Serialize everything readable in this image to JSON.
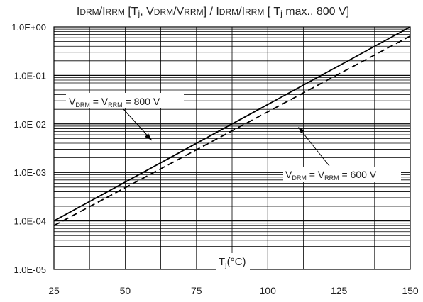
{
  "chart_data": {
    "type": "line",
    "title": {
      "i_drm": "DRM",
      "i_rrm": "RRM",
      "mid": " [T",
      "j": "j",
      "v_sep": ", V",
      "v_drm": "DRM",
      "v_rrm": "RRM",
      "close": "] / I",
      "i_drm2": "DRM",
      "i_rrm2": "RRM",
      "end1": " [ T",
      "j2": "j",
      "end2": " max., 800 V]"
    },
    "xlabel": {
      "main": "T",
      "sub": "j",
      "unit": "(°C)"
    },
    "xlim": [
      25,
      150
    ],
    "ylim": [
      1e-05,
      1
    ],
    "yscale": "log",
    "grid": true,
    "xticks": [
      "25",
      "50",
      "75",
      "100",
      "125",
      "150"
    ],
    "yticks": [
      "1.0E-05",
      "1.0E-04",
      "1.0E-03",
      "1.0E-02",
      "1.0E-01",
      "1.0E+00"
    ],
    "series": [
      {
        "name": "V_DRM = V_RRM = 800 V",
        "style": "solid",
        "x": [
          25,
          150
        ],
        "y": [
          0.0001,
          1
        ]
      },
      {
        "name": "V_DRM = V_RRM = 600 V",
        "style": "dashed",
        "x": [
          25,
          150
        ],
        "y": [
          8e-05,
          0.65
        ]
      }
    ],
    "annotations": [
      {
        "v": "V",
        "sub1": "DRM",
        "eq": " = V",
        "sub2": "RRM",
        "value": " = 800 V"
      },
      {
        "v": "V",
        "sub1": "DRM",
        "eq": " = V",
        "sub2": "RRM",
        "value": " = 600 V"
      }
    ]
  }
}
